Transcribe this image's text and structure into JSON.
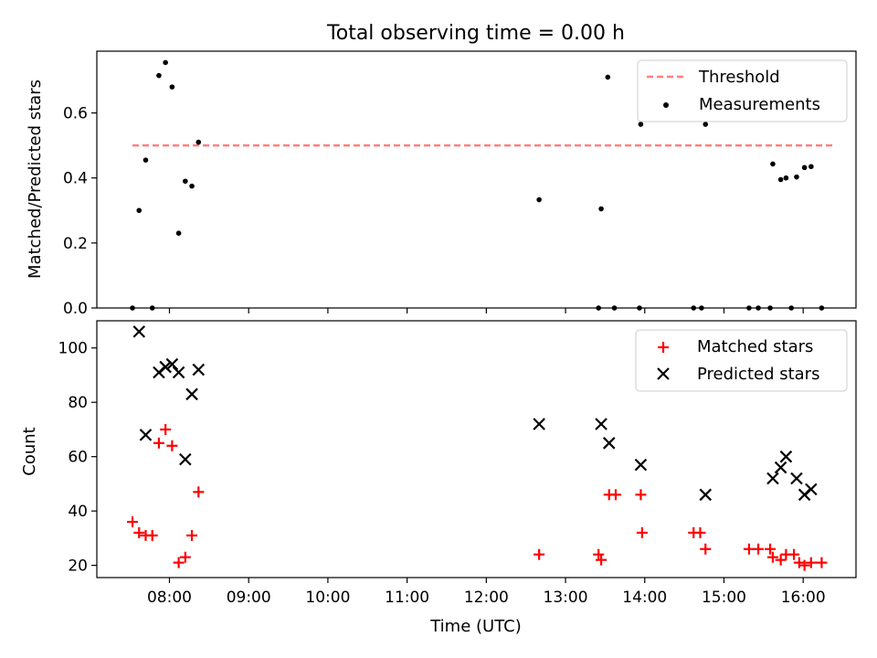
{
  "chart_data": {
    "title": "Total observing time = 0.00 h",
    "xlabel": "Time (UTC)",
    "x_ticks": [
      "08:00",
      "09:00",
      "10:00",
      "11:00",
      "12:00",
      "13:00",
      "14:00",
      "15:00",
      "16:00"
    ],
    "xlim": [
      "07:05",
      "16:40"
    ],
    "panels": [
      {
        "type": "scatter",
        "ylabel": "Matched/Predicted stars",
        "ylim": [
          0,
          0.79
        ],
        "y_ticks": [
          0.0,
          0.2,
          0.4,
          0.6
        ],
        "legend_position": "upper right",
        "threshold": {
          "name": "Threshold",
          "value": 0.5,
          "x_range": [
            "07:32",
            "16:23"
          ],
          "color": "#ff7f7f",
          "style": "dashed"
        },
        "series": [
          {
            "name": "Measurements",
            "marker": "dot",
            "color": "#000000",
            "points": [
              [
                "07:32",
                0.0
              ],
              [
                "07:37",
                0.3
              ],
              [
                "07:42",
                0.455
              ],
              [
                "07:47",
                0.0
              ],
              [
                "07:52",
                0.715
              ],
              [
                "07:57",
                0.755
              ],
              [
                "08:02",
                0.68
              ],
              [
                "08:07",
                0.23
              ],
              [
                "08:12",
                0.39
              ],
              [
                "08:17",
                0.375
              ],
              [
                "08:22",
                0.51
              ],
              [
                "12:40",
                0.333
              ],
              [
                "13:25",
                0.0
              ],
              [
                "13:27",
                0.305
              ],
              [
                "13:32",
                0.71
              ],
              [
                "13:37",
                0.0
              ],
              [
                "13:56",
                0.0
              ],
              [
                "13:57",
                0.565
              ],
              [
                "14:37",
                0.0
              ],
              [
                "14:43",
                0.0
              ],
              [
                "14:46",
                0.565
              ],
              [
                "15:19",
                0.0
              ],
              [
                "15:26",
                0.0
              ],
              [
                "15:35",
                0.0
              ],
              [
                "15:37",
                0.443
              ],
              [
                "15:43",
                0.395
              ],
              [
                "15:47",
                0.4
              ],
              [
                "15:51",
                0.0
              ],
              [
                "15:55",
                0.403
              ],
              [
                "16:01",
                0.432
              ],
              [
                "16:06",
                0.435
              ],
              [
                "16:14",
                0.0
              ]
            ]
          }
        ]
      },
      {
        "type": "scatter",
        "ylabel": "Count",
        "ylim": [
          15.5,
          110
        ],
        "y_ticks": [
          20,
          40,
          60,
          80,
          100
        ],
        "legend_position": "upper right",
        "series": [
          {
            "name": "Matched stars",
            "marker": "plus",
            "color": "#ff0000",
            "points": [
              [
                "07:32",
                36
              ],
              [
                "07:37",
                32
              ],
              [
                "07:42",
                31
              ],
              [
                "07:47",
                31
              ],
              [
                "07:52",
                65
              ],
              [
                "07:57",
                70
              ],
              [
                "08:02",
                64
              ],
              [
                "08:07",
                21
              ],
              [
                "08:12",
                23
              ],
              [
                "08:17",
                31
              ],
              [
                "08:22",
                47
              ],
              [
                "12:40",
                24
              ],
              [
                "13:25",
                24
              ],
              [
                "13:27",
                22
              ],
              [
                "13:33",
                46
              ],
              [
                "13:38",
                46
              ],
              [
                "13:57",
                46
              ],
              [
                "13:58",
                32
              ],
              [
                "14:37",
                32
              ],
              [
                "14:42",
                32
              ],
              [
                "14:46",
                26
              ],
              [
                "15:19",
                26
              ],
              [
                "15:26",
                26
              ],
              [
                "15:35",
                26
              ],
              [
                "15:37",
                23
              ],
              [
                "15:43",
                22
              ],
              [
                "15:47",
                24
              ],
              [
                "15:53",
                24
              ],
              [
                "15:57",
                21
              ],
              [
                "16:01",
                20
              ],
              [
                "16:06",
                21
              ],
              [
                "16:14",
                21
              ]
            ]
          },
          {
            "name": "Predicted stars",
            "marker": "x",
            "color": "#000000",
            "points": [
              [
                "07:37",
                106
              ],
              [
                "07:42",
                68
              ],
              [
                "07:52",
                91
              ],
              [
                "07:57",
                93
              ],
              [
                "08:02",
                94
              ],
              [
                "08:07",
                91
              ],
              [
                "08:12",
                59
              ],
              [
                "08:17",
                83
              ],
              [
                "08:22",
                92
              ],
              [
                "12:40",
                72
              ],
              [
                "13:27",
                72
              ],
              [
                "13:33",
                65
              ],
              [
                "13:57",
                57
              ],
              [
                "14:46",
                46
              ],
              [
                "15:37",
                52
              ],
              [
                "15:43",
                56
              ],
              [
                "15:47",
                60
              ],
              [
                "15:55",
                52
              ],
              [
                "16:01",
                46
              ],
              [
                "16:06",
                48
              ]
            ]
          }
        ]
      }
    ]
  }
}
